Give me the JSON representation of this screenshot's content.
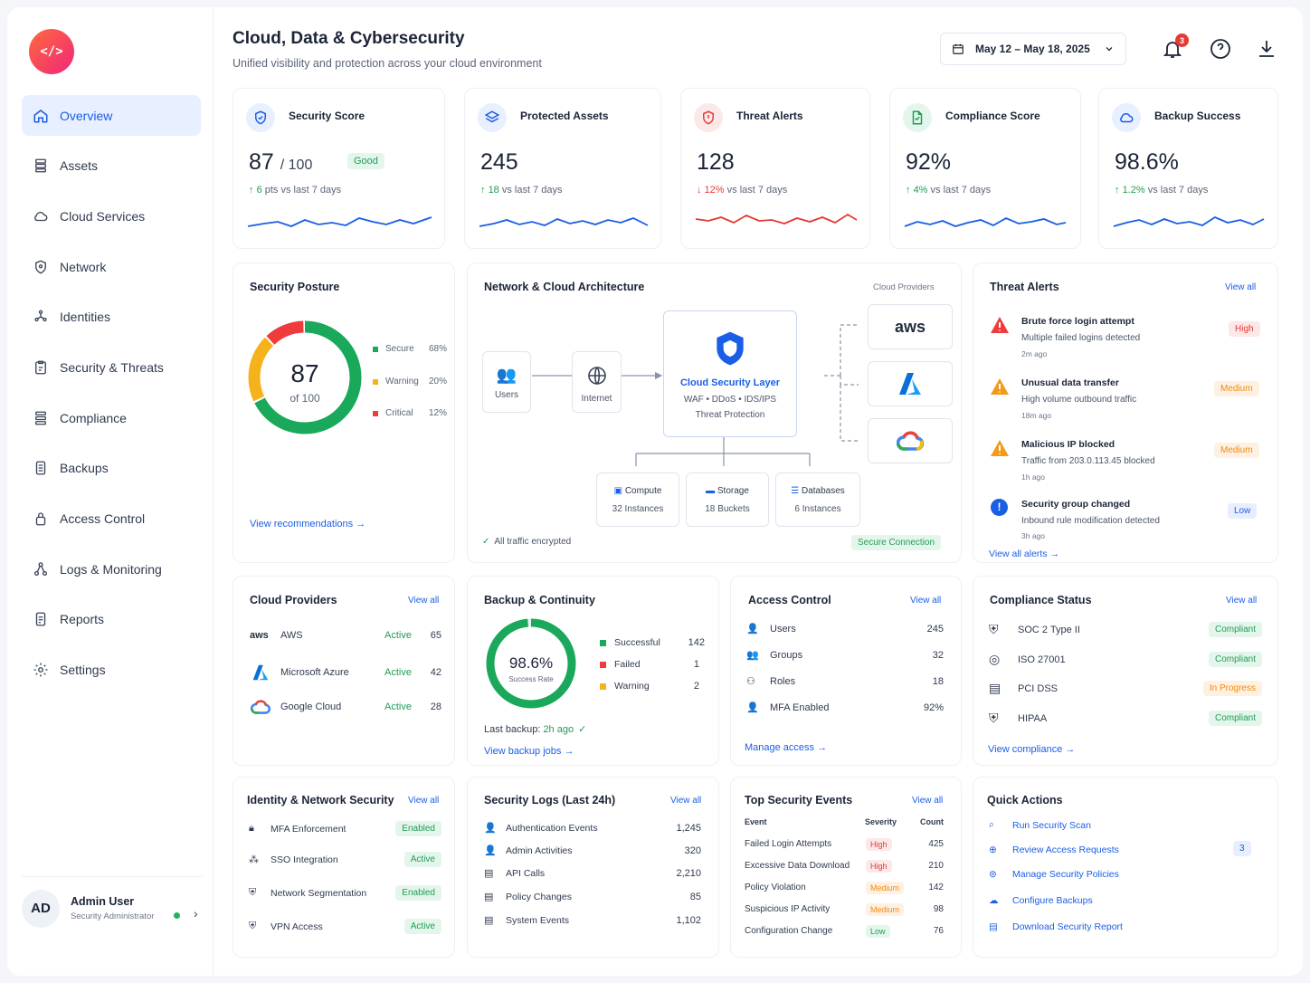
{
  "sidebar": {
    "logo_text": "</>",
    "items": [
      {
        "label": "Overview",
        "icon": "home-icon"
      },
      {
        "label": "Assets",
        "icon": "server-icon"
      },
      {
        "label": "Cloud Services",
        "icon": "cloud-icon"
      },
      {
        "label": "Network",
        "icon": "network-icon"
      },
      {
        "label": "Identities",
        "icon": "fingerprint-icon"
      },
      {
        "label": "Security & Threats",
        "icon": "clipboard-icon"
      },
      {
        "label": "Compliance",
        "icon": "list-icon"
      },
      {
        "label": "Backups",
        "icon": "document-icon"
      },
      {
        "label": "Access Control",
        "icon": "lock-icon"
      },
      {
        "label": "Logs & Monitoring",
        "icon": "nodes-icon"
      },
      {
        "label": "Reports",
        "icon": "report-icon"
      },
      {
        "label": "Settings",
        "icon": "gear-icon"
      }
    ],
    "user": {
      "initials": "AD",
      "name": "Admin User",
      "role": "Security Administrator"
    }
  },
  "header": {
    "title": "Cloud, Data & Cybersecurity",
    "subtitle": "Unified visibility and protection across your cloud environment",
    "date_range": "May 12 – May 18, 2025",
    "notification_count": "3"
  },
  "kpis": [
    {
      "label": "Security Score",
      "value": "87",
      "suffix": "/ 100",
      "badge": "Good",
      "delta": "6",
      "delta_text": "pts vs last 7 days",
      "direction": "up",
      "color": "#1a5ee6"
    },
    {
      "label": "Protected Assets",
      "value": "245",
      "delta": "18",
      "delta_text": "vs last 7 days",
      "direction": "up",
      "color": "#1a5ee6"
    },
    {
      "label": "Threat Alerts",
      "value": "128",
      "delta": "12%",
      "delta_text": "vs last 7 days",
      "direction": "down",
      "color": "#e53935"
    },
    {
      "label": "Compliance Score",
      "value": "92%",
      "delta": "4%",
      "delta_text": "vs last 7 days",
      "direction": "up",
      "color": "#1a5ee6"
    },
    {
      "label": "Backup Success",
      "value": "98.6%",
      "delta": "1.2%",
      "delta_text": "vs last 7 days",
      "direction": "up",
      "color": "#1a5ee6"
    }
  ],
  "posture": {
    "title": "Security Posture",
    "score": "87",
    "of": "of 100",
    "legend": [
      {
        "label": "Secure",
        "value": "68%",
        "pct": 68,
        "color": "#1aa85a"
      },
      {
        "label": "Warning",
        "value": "20%",
        "pct": 20,
        "color": "#f6b21b"
      },
      {
        "label": "Critical",
        "value": "12%",
        "pct": 12,
        "color": "#ef3b3b"
      }
    ],
    "link": "View recommendations"
  },
  "architecture": {
    "title": "Network & Cloud Architecture",
    "providers_label": "Cloud Providers",
    "users": "Users",
    "internet": "Internet",
    "layer_title": "Cloud Security Layer",
    "layer_line1": "WAF • DDoS • IDS/IPS",
    "layer_line2": "Threat Protection",
    "compute": "Compute",
    "compute_sub": "32 Instances",
    "storage": "Storage",
    "storage_sub": "18 Buckets",
    "databases": "Databases",
    "databases_sub": "6 Instances",
    "aws": "aws",
    "encrypted": "All traffic encrypted",
    "secure": "Secure Connection"
  },
  "threat_alerts": {
    "title": "Threat Alerts",
    "view_all": "View all",
    "items": [
      {
        "title": "Brute force login attempt",
        "desc": "Multiple failed logins detected",
        "time": "2m ago",
        "severity": "High"
      },
      {
        "title": "Unusual data transfer",
        "desc": "High volume outbound traffic",
        "time": "18m ago",
        "severity": "Medium"
      },
      {
        "title": "Malicious IP blocked",
        "desc": "Traffic from 203.0.113.45 blocked",
        "time": "1h ago",
        "severity": "Medium"
      },
      {
        "title": "Security group changed",
        "desc": "Inbound rule modification detected",
        "time": "3h ago",
        "severity": "Low"
      }
    ],
    "link": "View all alerts"
  },
  "cloud_providers": {
    "title": "Cloud Providers",
    "view_all": "View all",
    "items": [
      {
        "name": "AWS",
        "status": "Active",
        "count": "65"
      },
      {
        "name": "Microsoft Azure",
        "status": "Active",
        "count": "42"
      },
      {
        "name": "Google Cloud",
        "status": "Active",
        "count": "28"
      }
    ]
  },
  "backup": {
    "title": "Backup & Continuity",
    "rate": "98.6%",
    "rate_label": "Success Rate",
    "rate_value": 98.6,
    "legend": [
      {
        "label": "Successful",
        "value": "142",
        "color": "#1aa85a"
      },
      {
        "label": "Failed",
        "value": "1",
        "color": "#ef3b3b"
      },
      {
        "label": "Warning",
        "value": "2",
        "color": "#f6b21b"
      }
    ],
    "last_label": "Last backup:",
    "last_value": "2h ago",
    "link": "View backup jobs"
  },
  "access_control": {
    "title": "Access Control",
    "view_all": "View all",
    "items": [
      {
        "label": "Users",
        "value": "245"
      },
      {
        "label": "Groups",
        "value": "32"
      },
      {
        "label": "Roles",
        "value": "18"
      },
      {
        "label": "MFA Enabled",
        "value": "92%"
      }
    ],
    "link": "Manage access"
  },
  "compliance": {
    "title": "Compliance Status",
    "view_all": "View all",
    "items": [
      {
        "label": "SOC 2 Type II",
        "status": "Compliant"
      },
      {
        "label": "ISO 27001",
        "status": "Compliant"
      },
      {
        "label": "PCI DSS",
        "status": "In Progress"
      },
      {
        "label": "HIPAA",
        "status": "Compliant"
      }
    ],
    "link": "View compliance"
  },
  "identity": {
    "title": "Identity & Network Security",
    "view_all": "View all",
    "items": [
      {
        "label": "MFA Enforcement",
        "status": "Enabled"
      },
      {
        "label": "SSO Integration",
        "status": "Active"
      },
      {
        "label": "Network Segmentation",
        "status": "Enabled"
      },
      {
        "label": "VPN Access",
        "status": "Active"
      }
    ]
  },
  "logs": {
    "title": "Security Logs (Last 24h)",
    "view_all": "View all",
    "items": [
      {
        "label": "Authentication Events",
        "value": "1,245"
      },
      {
        "label": "Admin Activities",
        "value": "320"
      },
      {
        "label": "API Calls",
        "value": "2,210"
      },
      {
        "label": "Policy Changes",
        "value": "85"
      },
      {
        "label": "System Events",
        "value": "1,102"
      }
    ]
  },
  "events": {
    "title": "Top Security Events",
    "view_all": "View all",
    "headers": [
      "Event",
      "Severity",
      "Count"
    ],
    "rows": [
      {
        "event": "Failed Login Attempts",
        "severity": "High",
        "count": "425"
      },
      {
        "event": "Excessive Data Download",
        "severity": "High",
        "count": "210"
      },
      {
        "event": "Policy Violation",
        "severity": "Medium",
        "count": "142"
      },
      {
        "event": "Suspicious IP Activity",
        "severity": "Medium",
        "count": "98"
      },
      {
        "event": "Configuration Change",
        "severity": "Low",
        "count": "76"
      }
    ]
  },
  "quick_actions": {
    "title": "Quick Actions",
    "items": [
      {
        "label": "Run Security Scan"
      },
      {
        "label": "Review Access Requests",
        "badge": "3"
      },
      {
        "label": "Manage Security Policies"
      },
      {
        "label": "Configure Backups"
      },
      {
        "label": "Download Security Report"
      }
    ]
  }
}
